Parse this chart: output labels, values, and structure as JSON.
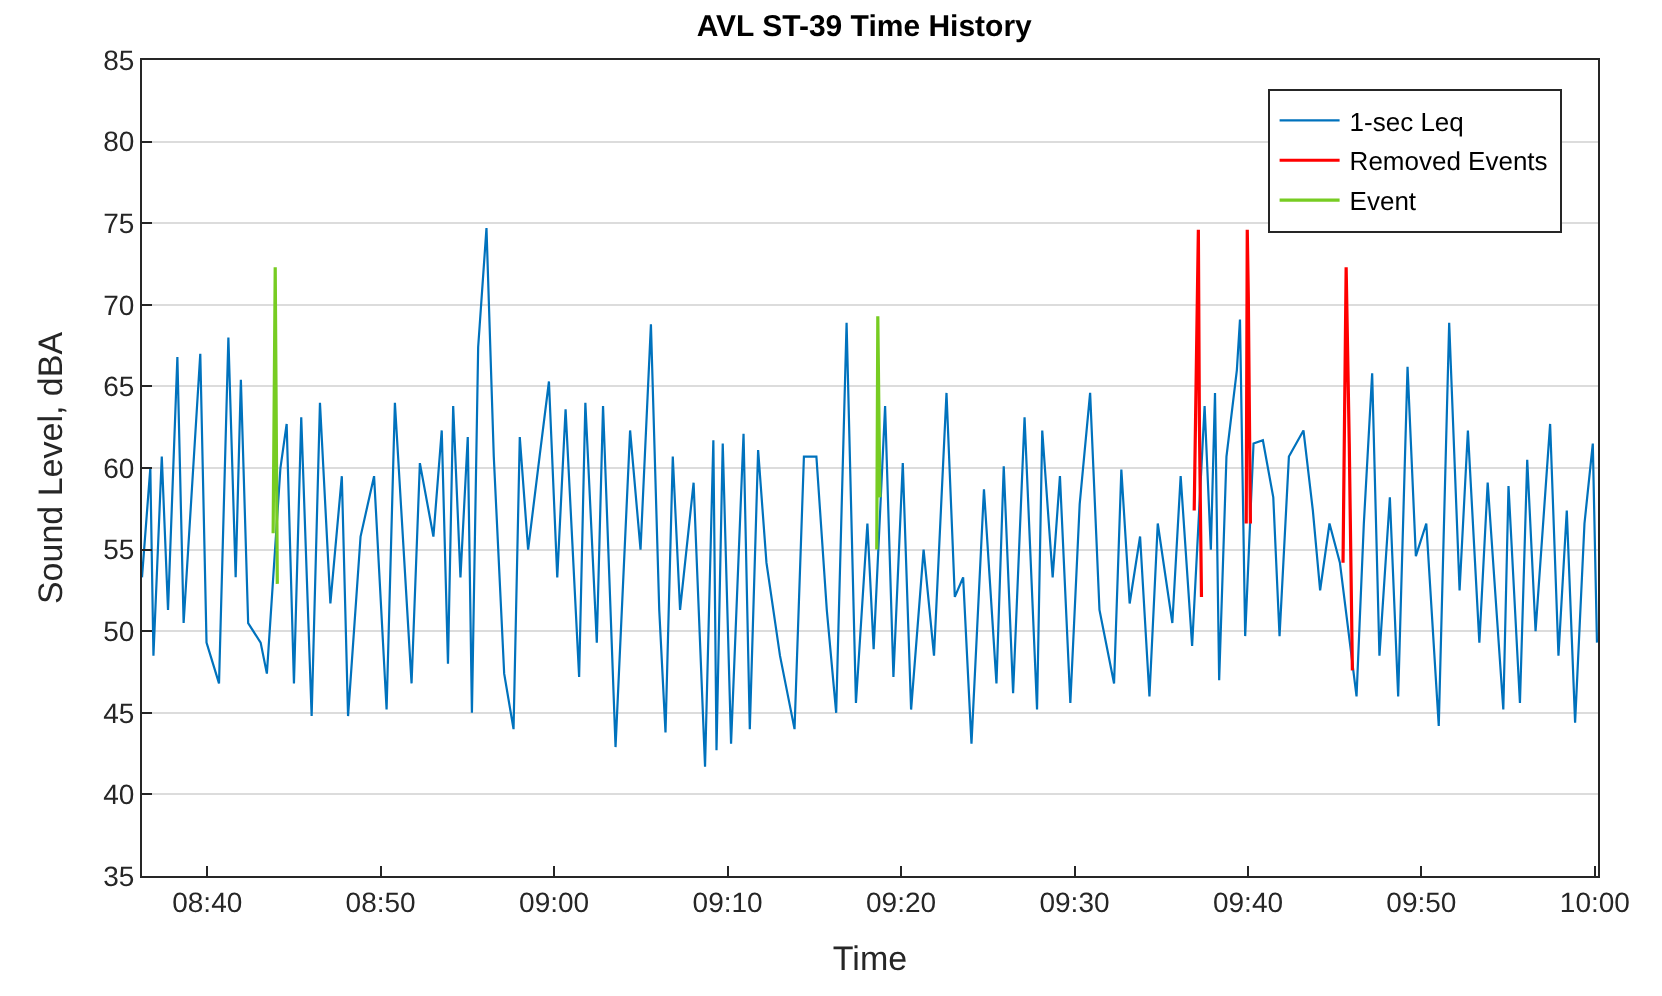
{
  "chart_data": {
    "type": "line",
    "title": "AVL ST-39 Time History",
    "xlabel": "Time",
    "ylabel": "Sound Level, dBA",
    "xlim": [
      8.604,
      10.003
    ],
    "ylim": [
      35,
      85
    ],
    "xticks": [
      {
        "value": 8.6667,
        "label": "08:40"
      },
      {
        "value": 8.8333,
        "label": "08:50"
      },
      {
        "value": 9,
        "label": "09:00"
      },
      {
        "value": 9.1667,
        "label": "09:10"
      },
      {
        "value": 9.3333,
        "label": "09:20"
      },
      {
        "value": 9.5,
        "label": "09:30"
      },
      {
        "value": 9.6667,
        "label": "09:40"
      },
      {
        "value": 9.8333,
        "label": "09:50"
      },
      {
        "value": 10,
        "label": "10:00"
      }
    ],
    "yticks": [
      35,
      40,
      45,
      50,
      55,
      60,
      65,
      70,
      75,
      80,
      85
    ],
    "grid": "y",
    "legend": "top right",
    "series": [
      {
        "name": "1-sec Leq",
        "color": "#0072bd",
        "x": [
          8.604,
          8.612,
          8.615,
          8.623,
          8.629,
          8.638,
          8.644,
          8.66,
          8.666,
          8.678,
          8.687,
          8.694,
          8.699,
          8.706,
          8.718,
          8.724,
          8.737,
          8.743,
          8.75,
          8.757,
          8.767,
          8.775,
          8.785,
          8.796,
          8.802,
          8.814,
          8.827,
          8.839,
          8.847,
          8.863,
          8.871,
          8.884,
          8.892,
          8.898,
          8.903,
          8.91,
          8.917,
          8.921,
          8.927,
          8.935,
          8.942,
          8.952,
          8.961,
          8.967,
          8.975,
          8.986,
          8.995,
          9.003,
          9.011,
          9.024,
          9.03,
          9.041,
          9.047,
          9.059,
          9.073,
          9.083,
          9.093,
          9.101,
          9.107,
          9.114,
          9.121,
          9.134,
          9.145,
          9.153,
          9.156,
          9.162,
          9.17,
          9.182,
          9.188,
          9.196,
          9.204,
          9.217,
          9.231,
          9.24,
          9.252,
          9.262,
          9.271,
          9.281,
          9.29,
          9.301,
          9.307,
          9.318,
          9.326,
          9.335,
          9.343,
          9.355,
          9.365,
          9.377,
          9.385,
          9.393,
          9.401,
          9.413,
          9.425,
          9.432,
          9.441,
          9.452,
          9.464,
          9.469,
          9.479,
          9.486,
          9.496,
          9.505,
          9.515,
          9.524,
          9.538,
          9.545,
          9.553,
          9.563,
          9.572,
          9.58,
          9.594,
          9.602,
          9.613,
          9.625,
          9.631,
          9.635,
          9.639,
          9.646,
          9.656,
          9.659,
          9.664,
          9.672,
          9.681,
          9.691,
          9.697,
          9.706,
          9.72,
          9.729,
          9.736,
          9.745,
          9.755,
          9.771,
          9.778,
          9.786,
          9.793,
          9.803,
          9.811,
          9.82,
          9.828,
          9.838,
          9.85,
          9.86,
          9.87,
          9.878,
          9.889,
          9.897,
          9.912,
          9.917,
          9.928,
          9.935,
          9.943,
          9.957,
          9.965,
          9.973,
          9.981,
          9.99,
          9.998,
          10.002
        ],
        "values": [
          53.3,
          60,
          48.5,
          60.7,
          51.3,
          66.8,
          50.5,
          67,
          49.3,
          46.8,
          68,
          53.3,
          65.4,
          50.5,
          49.3,
          47.4,
          60,
          62.7,
          46.8,
          63.1,
          44.8,
          64,
          51.7,
          59.5,
          44.8,
          55.8,
          59.5,
          45.2,
          64,
          46.8,
          60.3,
          55.8,
          62.3,
          48,
          63.8,
          53.3,
          61.9,
          45,
          67.4,
          74.7,
          60.7,
          47.4,
          44,
          61.9,
          55,
          60.7,
          65.3,
          53.3,
          63.6,
          47.2,
          64,
          49.3,
          63.8,
          42.9,
          62.3,
          55,
          68.8,
          51.3,
          43.8,
          60.7,
          51.3,
          59.1,
          41.7,
          61.7,
          42.7,
          61.5,
          43.1,
          62.1,
          44,
          61.1,
          54.2,
          48.5,
          44,
          60.7,
          60.7,
          51.3,
          45,
          68.9,
          45.6,
          56.6,
          48.9,
          63.8,
          47.2,
          60.3,
          45.2,
          55,
          48.5,
          64.6,
          52.1,
          53.3,
          43.1,
          58.7,
          46.8,
          60.1,
          46.2,
          63.1,
          45.2,
          62.3,
          53.3,
          59.5,
          45.6,
          57.8,
          64.6,
          51.3,
          46.8,
          59.9,
          51.7,
          55.8,
          46,
          56.6,
          50.5,
          59.5,
          49.1,
          63.8,
          55,
          64.6,
          47,
          60.7,
          66,
          69.1,
          49.7,
          61.5,
          61.7,
          58.2,
          49.7,
          60.7,
          62.3,
          57.4,
          52.5,
          56.6,
          54.2,
          46,
          56.6,
          65.8,
          48.5,
          58.2,
          46,
          66.2,
          54.6,
          56.6,
          44.2,
          68.9,
          52.5,
          62.3,
          49.3,
          59.1,
          45.2,
          58.9,
          45.6,
          60.5,
          50,
          62.7,
          48.5,
          57.4,
          44.4,
          56.6,
          61.5,
          49.3
        ]
      },
      {
        "name": "Removed Events",
        "color": "#ff0000",
        "x": [
          9.615,
          9.619,
          9.62,
          9.622,
          9.623,
          9.665,
          9.666,
          9.667,
          9.669,
          9.67,
          9.758,
          9.761,
          9.764,
          9.767
        ],
        "values": [
          57.4,
          74.6,
          62.7,
          52.1,
          null,
          56.6,
          74.6,
          70.5,
          56.6,
          null,
          54.2,
          72.3,
          61.5,
          47.6
        ]
      },
      {
        "name": "Event",
        "color": "#77cc22",
        "x": [
          8.73,
          8.732,
          8.734,
          8.735,
          9.31,
          9.311,
          9.313
        ],
        "values": [
          56,
          72.3,
          52.9,
          null,
          55,
          69.3,
          58.2
        ]
      }
    ]
  }
}
